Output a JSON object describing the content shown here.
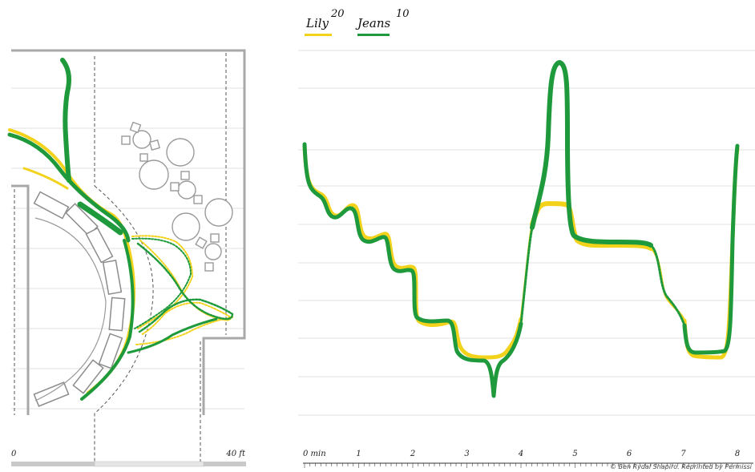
{
  "legend": {
    "items": [
      {
        "name": "Lily",
        "sup": "20",
        "color": "#f2d21b"
      },
      {
        "name": "Jeans",
        "sup": "10",
        "color": "#1e9a3c"
      }
    ]
  },
  "floorplan": {
    "scale": {
      "start_label": "0",
      "end_label": "40 ft"
    }
  },
  "timeline": {
    "axis_unit_label": "0 min",
    "ticks": [
      "1",
      "2",
      "3",
      "4",
      "5",
      "6",
      "7",
      "8"
    ]
  },
  "credit": "© Ben Rydal Shapiro. Reprinted by Permissi",
  "colors": {
    "grid": "#dcdcdc",
    "wall": "#a8a8a8",
    "furniture": "#9a9a9a"
  }
}
